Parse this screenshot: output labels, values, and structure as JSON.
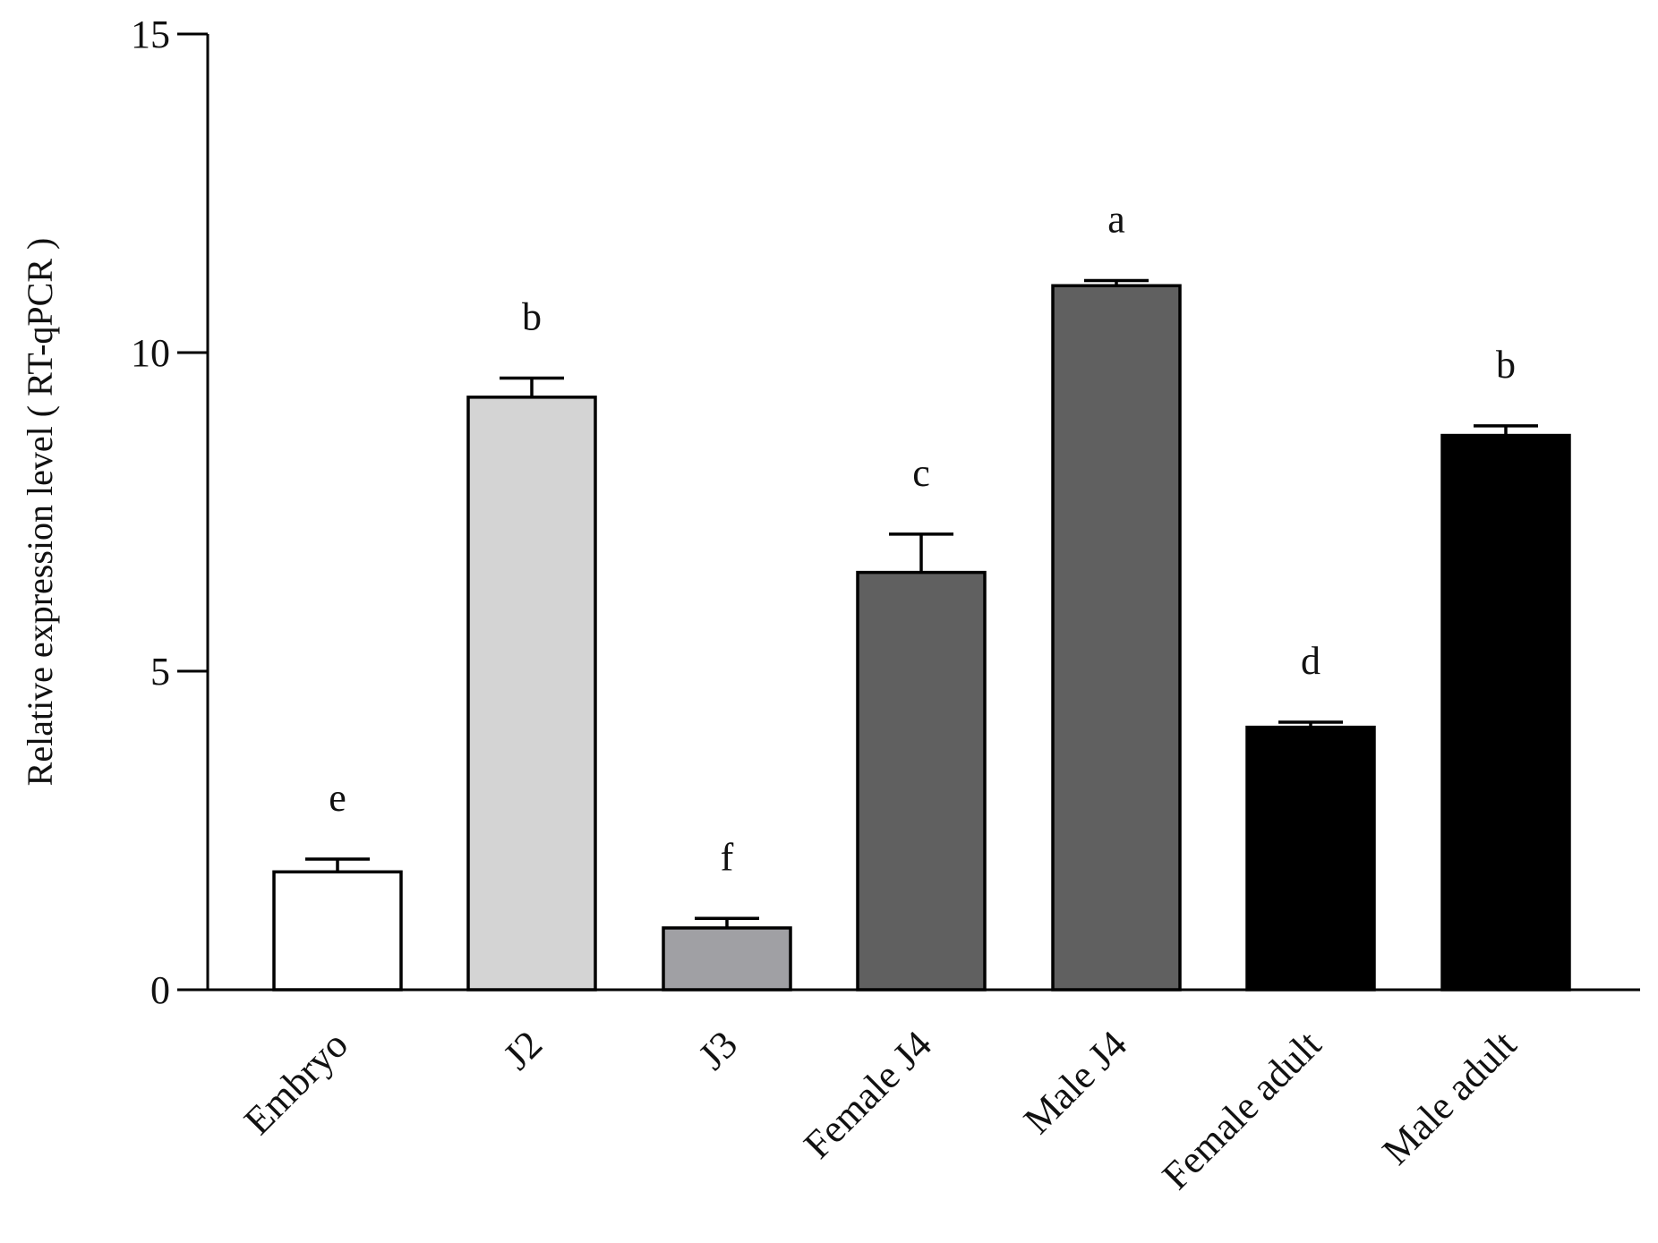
{
  "chart_data": {
    "type": "bar",
    "title": "",
    "xlabel": "",
    "ylabel": "Relative expression level ( RT-qPCR )",
    "ylim": [
      0,
      15
    ],
    "yticks": [
      0,
      5,
      10,
      15
    ],
    "grid": false,
    "categories": [
      "Embryo",
      "J2",
      "J3",
      "Female J4",
      "Male J4",
      "Female adult",
      "Male adult"
    ],
    "values": [
      1.85,
      9.3,
      0.97,
      6.55,
      11.05,
      4.12,
      8.7
    ],
    "errors": [
      0.2,
      0.3,
      0.15,
      0.6,
      0.08,
      0.08,
      0.15
    ],
    "significance": [
      "e",
      "b",
      "f",
      "c",
      "a",
      "d",
      "b"
    ],
    "bar_colors": [
      "#ffffff",
      "#d4d4d4",
      "#a0a0a4",
      "#606060",
      "#606060",
      "#000000",
      "#000000"
    ]
  }
}
